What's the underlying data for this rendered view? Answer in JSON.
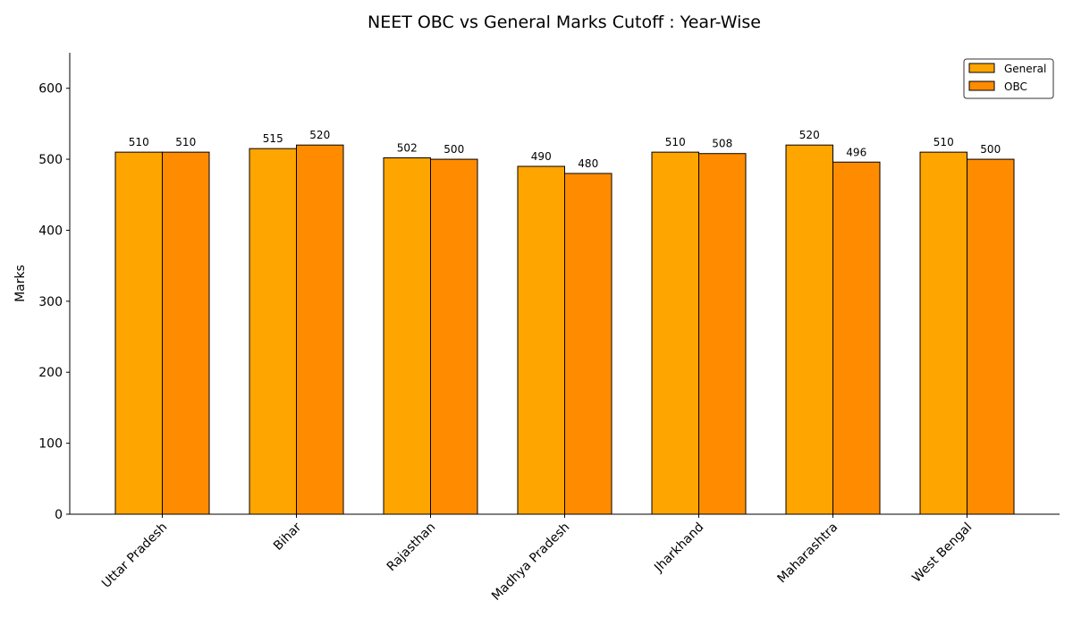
{
  "chart_data": {
    "type": "bar",
    "title": "NEET OBC vs General Marks Cutoff : Year-Wise",
    "xlabel": "",
    "ylabel": "Marks",
    "ylim": [
      0,
      650
    ],
    "yticks": [
      0,
      100,
      200,
      300,
      400,
      500,
      600
    ],
    "grid": false,
    "legend_position": "top-right",
    "categories": [
      "Uttar Pradesh",
      "Bihar",
      "Rajasthan",
      "Madhya Pradesh",
      "Jharkhand",
      "Maharashtra",
      "West Bengal"
    ],
    "series": [
      {
        "name": "General",
        "color": "#FFA500",
        "values": [
          510,
          515,
          502,
          490,
          510,
          520,
          510
        ]
      },
      {
        "name": "OBC",
        "color": "#FF8C00",
        "values": [
          510,
          520,
          500,
          480,
          508,
          496,
          500
        ]
      }
    ]
  }
}
